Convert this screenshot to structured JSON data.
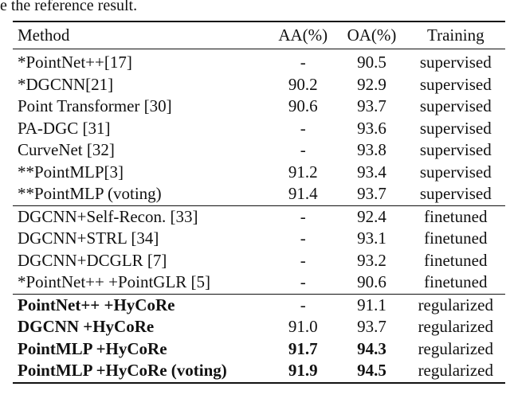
{
  "caption_tail": "e the reference result.",
  "table": {
    "headers": {
      "method": "Method",
      "aa": "AA(%)",
      "oa": "OA(%)",
      "training": "Training"
    },
    "groups": [
      [
        {
          "method": "*PointNet++[17]",
          "aa": "-",
          "oa": "90.5",
          "training": "supervised"
        },
        {
          "method": "*DGCNN[21]",
          "aa": "90.2",
          "oa": "92.9",
          "training": "supervised"
        },
        {
          "method": "Point Transformer [30]",
          "aa": "90.6",
          "oa": "93.7",
          "training": "supervised"
        },
        {
          "method": "PA-DGC [31]",
          "aa": "-",
          "oa": "93.6",
          "training": "supervised"
        },
        {
          "method": "CurveNet [32]",
          "aa": "-",
          "oa": "93.8",
          "training": "supervised"
        },
        {
          "method": "**PointMLP[3]",
          "aa": "91.2",
          "oa": "93.4",
          "training": "supervised"
        },
        {
          "method": "**PointMLP (voting)",
          "aa": "91.4",
          "oa": "93.7",
          "training": "supervised"
        }
      ],
      [
        {
          "method": "DGCNN+Self-Recon. [33]",
          "aa": "-",
          "oa": "92.4",
          "training": "finetuned"
        },
        {
          "method": "DGCNN+STRL [34]",
          "aa": "-",
          "oa": "93.1",
          "training": "finetuned"
        },
        {
          "method": "DGCNN+DCGLR [7]",
          "aa": "-",
          "oa": "93.2",
          "training": "finetuned"
        },
        {
          "method": "*PointNet++ +PointGLR [5]",
          "aa": "-",
          "oa": "90.6",
          "training": "finetuned"
        }
      ],
      [
        {
          "method": "PointNet++ +HyCoRe",
          "aa": "-",
          "oa": "91.1",
          "training": "regularized"
        },
        {
          "method": "DGCNN +HyCoRe",
          "aa": "91.0",
          "oa": "93.7",
          "training": "regularized"
        },
        {
          "method": "PointMLP +HyCoRe",
          "aa": "91.7",
          "oa": "94.3",
          "training": "regularized"
        },
        {
          "method": "PointMLP +HyCoRe (voting)",
          "aa": "91.9",
          "oa": "94.5",
          "training": "regularized"
        }
      ]
    ]
  }
}
